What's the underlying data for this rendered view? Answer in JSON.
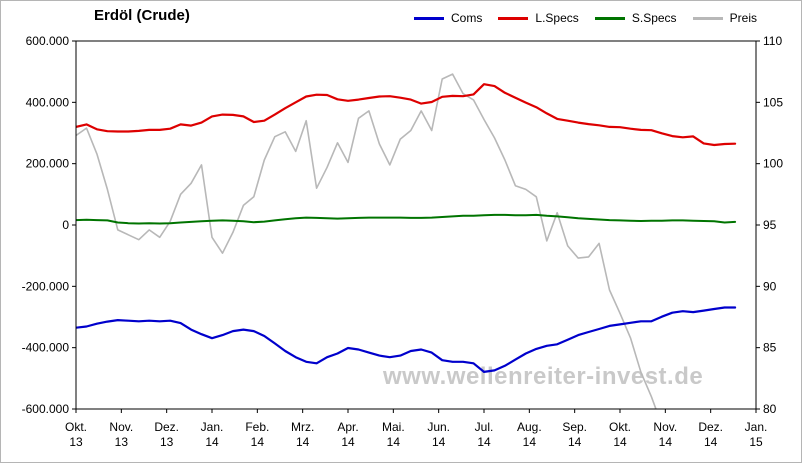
{
  "title": "Erdöl (Crude)",
  "watermark": "www.wellenreiter-invest.de",
  "chart_data": {
    "type": "line",
    "title": "Erdöl (Crude)",
    "x_frequency": "weekly",
    "x_ticks": [
      {
        "m": "Okt.",
        "y": "13"
      },
      {
        "m": "Nov.",
        "y": "13"
      },
      {
        "m": "Dez.",
        "y": "13"
      },
      {
        "m": "Jan.",
        "y": "14"
      },
      {
        "m": "Feb.",
        "y": "14"
      },
      {
        "m": "Mrz.",
        "y": "14"
      },
      {
        "m": "Apr.",
        "y": "14"
      },
      {
        "m": "Mai.",
        "y": "14"
      },
      {
        "m": "Jun.",
        "y": "14"
      },
      {
        "m": "Jul.",
        "y": "14"
      },
      {
        "m": "Aug.",
        "y": "14"
      },
      {
        "m": "Sep.",
        "y": "14"
      },
      {
        "m": "Okt.",
        "y": "14"
      },
      {
        "m": "Nov.",
        "y": "14"
      },
      {
        "m": "Dez.",
        "y": "14"
      },
      {
        "m": "Jan.",
        "y": "15"
      }
    ],
    "left_axis": {
      "units": "thousands",
      "min": -600,
      "max": 600,
      "ticks": [
        600,
        400,
        200,
        0,
        -200,
        -400,
        -600
      ],
      "tick_labels": [
        "600.000",
        "400.000",
        "200.000",
        "0",
        "-200.000",
        "-400.000",
        "-600.000"
      ],
      "negative_label_color": "#cc0000"
    },
    "right_axis": {
      "min": 80,
      "max": 110,
      "ticks": [
        110,
        105,
        100,
        95,
        90,
        85,
        80
      ],
      "tick_labels": [
        "110",
        "105",
        "100",
        "95",
        "90",
        "85",
        "80"
      ]
    },
    "legend_position": "top-right",
    "series": [
      {
        "name": "Coms",
        "color": "#0000cc",
        "axis": "left",
        "values": [
          -335,
          -331,
          -322,
          -315,
          -310,
          -312,
          -314,
          -312,
          -314,
          -312,
          -320,
          -341,
          -356,
          -369,
          -359,
          -346,
          -341,
          -346,
          -362,
          -386,
          -411,
          -431,
          -446,
          -451,
          -431,
          -419,
          -401,
          -406,
          -416,
          -426,
          -431,
          -426,
          -411,
          -406,
          -416,
          -441,
          -446,
          -446,
          -451,
          -479,
          -474,
          -459,
          -439,
          -419,
          -404,
          -394,
          -389,
          -374,
          -359,
          -349,
          -339,
          -329,
          -324,
          -319,
          -314,
          -314,
          -299,
          -286,
          -281,
          -284,
          -279,
          -274,
          -269,
          -269
        ]
      },
      {
        "name": "L.Specs",
        "color": "#dd0000",
        "axis": "left",
        "values": [
          320,
          328,
          312,
          306,
          305,
          305,
          307,
          310,
          310,
          314,
          328,
          324,
          334,
          354,
          360,
          359,
          354,
          336,
          340,
          360,
          381,
          400,
          419,
          425,
          424,
          410,
          405,
          409,
          414,
          419,
          420,
          415,
          409,
          396,
          401,
          418,
          421,
          420,
          426,
          459,
          453,
          431,
          415,
          399,
          384,
          364,
          346,
          340,
          334,
          329,
          325,
          320,
          319,
          314,
          310,
          309,
          299,
          290,
          286,
          289,
          266,
          261,
          264,
          265
        ]
      },
      {
        "name": "S.Specs",
        "color": "#007400",
        "axis": "left",
        "values": [
          16,
          17,
          16,
          15,
          8,
          6,
          5,
          6,
          5,
          6,
          8,
          10,
          12,
          14,
          15,
          14,
          12,
          9,
          11,
          15,
          19,
          22,
          24,
          23,
          22,
          21,
          22,
          23,
          24,
          24,
          24,
          24,
          23,
          23,
          24,
          26,
          28,
          30,
          30,
          32,
          33,
          33,
          32,
          32,
          33,
          30,
          28,
          25,
          22,
          20,
          18,
          16,
          15,
          14,
          13,
          14,
          14,
          15,
          15,
          14,
          13,
          12,
          8,
          10
        ]
      },
      {
        "name": "Preis",
        "color": "#b8b8b8",
        "axis": "right",
        "values": [
          102.3,
          102.9,
          100.8,
          97.9,
          94.6,
          94.2,
          93.8,
          94.6,
          94.0,
          95.3,
          97.5,
          98.4,
          99.9,
          94.0,
          92.7,
          94.4,
          96.6,
          97.3,
          100.3,
          102.2,
          102.6,
          101.0,
          103.5,
          98.0,
          99.7,
          101.7,
          100.1,
          103.7,
          104.3,
          101.6,
          99.9,
          102.0,
          102.7,
          104.3,
          102.7,
          106.9,
          107.3,
          105.7,
          105.2,
          103.6,
          102.1,
          100.3,
          98.2,
          97.9,
          97.3,
          93.7,
          96.0,
          93.3,
          92.3,
          92.4,
          93.5,
          89.7,
          87.8,
          85.8,
          83.0,
          81.0,
          78.7,
          75.8
        ]
      }
    ]
  }
}
